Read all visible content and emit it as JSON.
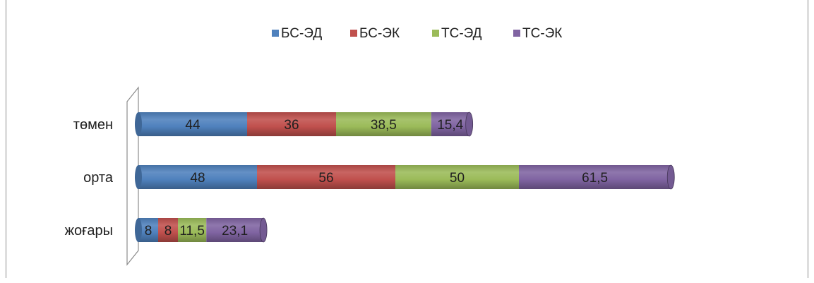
{
  "chart_data": {
    "type": "bar",
    "orientation": "horizontal",
    "stacked": true,
    "style": "3d-cylinder",
    "title": "",
    "xlabel": "",
    "ylabel": "",
    "categories": [
      "жоғары",
      "орта",
      "төмен"
    ],
    "series": [
      {
        "name": "БС-ЭД",
        "color": "#4f81bd",
        "values": [
          8,
          48,
          44
        ],
        "labels": [
          "8",
          "48",
          "44"
        ]
      },
      {
        "name": "БС-ЭК",
        "color": "#c0504d",
        "values": [
          8,
          56,
          36
        ],
        "labels": [
          "8",
          "56",
          "36"
        ]
      },
      {
        "name": "ТС-ЭД",
        "color": "#9bbb59",
        "values": [
          11.5,
          50,
          38.5
        ],
        "labels": [
          "11,5",
          "50",
          "38,5"
        ]
      },
      {
        "name": "ТС-ЭК",
        "color": "#8064a2",
        "values": [
          23.1,
          61.5,
          15.4
        ],
        "labels": [
          "23,1",
          "61,5",
          "15,4"
        ]
      }
    ],
    "legend": {
      "position": "top"
    },
    "grid": false,
    "axis_visible": false
  }
}
